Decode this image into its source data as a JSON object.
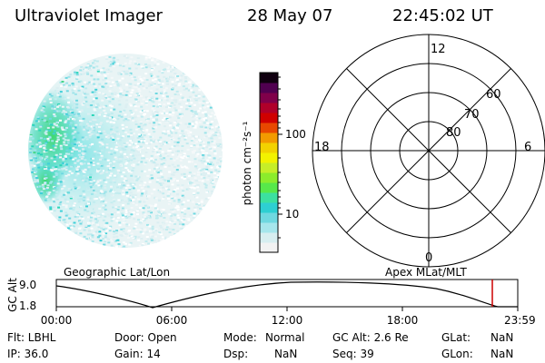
{
  "header": {
    "title": "Ultraviolet Imager",
    "date": "28 May 07",
    "time": "22:45:02 UT"
  },
  "colorbar": {
    "unit_label": "photon cm⁻²s⁻¹",
    "tick_labels": [
      "100",
      "10"
    ],
    "colors": [
      "#f2f2f2",
      "#d7eef0",
      "#a6e6ec",
      "#6fd8e0",
      "#2ecfd2",
      "#3ce0a0",
      "#57e84a",
      "#8cec2c",
      "#c6ee28",
      "#f2f200",
      "#f2d200",
      "#f29a00",
      "#e84800",
      "#d00000",
      "#b0002a",
      "#80004a",
      "#500050",
      "#100010"
    ]
  },
  "polar": {
    "ring_labels": [
      "80",
      "70",
      "60"
    ],
    "mlt_labels": {
      "top": "12",
      "left": "18",
      "right": "6",
      "bottom": "0"
    }
  },
  "timeline": {
    "left_label": "Geographic Lat/Lon",
    "right_label": "Apex MLat/MLT",
    "axis_label": "GC Alt",
    "y_labels": [
      "9.0",
      "1.8"
    ],
    "x_labels": [
      "00:00",
      "06:00",
      "12:00",
      "18:00",
      "23:59"
    ],
    "accent": "#cc0000"
  },
  "status": {
    "flt": "Flt: LBHL",
    "ip": "IP: 36.0",
    "door": "Door: Open",
    "gain": "Gain: 14",
    "mode_label": "Mode:",
    "mode_value": "Normal",
    "dsp_label": "Dsp:",
    "dsp_value": "NaN",
    "gcalt": "GC Alt: 2.6 Re",
    "seq": "Seq: 39",
    "glat_label": "GLat:",
    "glat_value": "NaN",
    "glon_label": "GLon:",
    "glon_value": "NaN"
  }
}
